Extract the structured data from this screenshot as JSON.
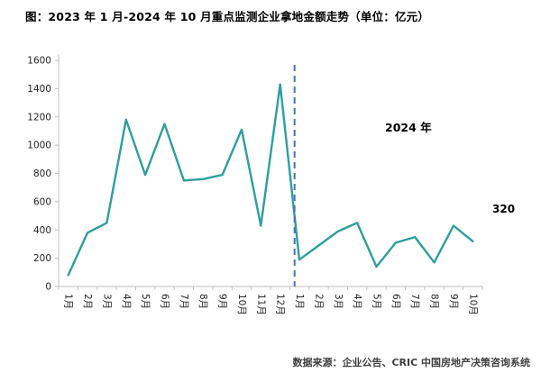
{
  "title": "图：2023 年 1 月-2024 年 10 月重点监测企业拿地金额走势（单位：亿元）",
  "source": "数据来源：企业公告、CRIC 中国房地产决策咨询系统",
  "annotation_2024": "2024 年",
  "end_label": "320",
  "colors": {
    "line": "#2f9e9e",
    "divider": "#4472c4",
    "axis": "#bfbfbf",
    "text": "#000000"
  },
  "chart_data": {
    "type": "line",
    "title": "2023年1月-2024年10月重点监测企业拿地金额走势（单位：亿元）",
    "categories": [
      "1月",
      "2月",
      "3月",
      "4月",
      "5月",
      "6月",
      "7月",
      "8月",
      "9月",
      "10月",
      "11月",
      "12月",
      "1月",
      "2月",
      "3月",
      "4月",
      "5月",
      "6月",
      "7月",
      "8月",
      "9月",
      "10月"
    ],
    "values": [
      80,
      380,
      450,
      1180,
      790,
      1150,
      750,
      760,
      790,
      1110,
      430,
      1430,
      190,
      290,
      390,
      450,
      140,
      310,
      350,
      170,
      430,
      320
    ],
    "ylim": [
      0,
      1600
    ],
    "ytick_step": 200,
    "divider_index": 11.75,
    "grid": false,
    "legend_position": "none"
  }
}
